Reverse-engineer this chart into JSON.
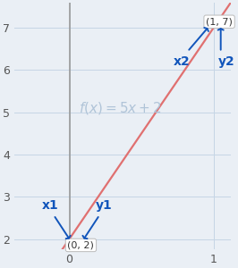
{
  "title": "$\\mathit{f}(x) = 5x + 2$",
  "xlim": [
    -0.38,
    1.12
  ],
  "ylim": [
    1.75,
    7.6
  ],
  "xticks": [
    0,
    1
  ],
  "yticks": [
    2,
    3,
    4,
    5,
    6,
    7
  ],
  "line_color": "#e07070",
  "slope": 5,
  "intercept": 2,
  "point1": [
    0,
    2
  ],
  "point2": [
    1,
    7
  ],
  "point1_label": "(0, 2)",
  "point2_label": "(1, 7)",
  "label_x1": "x1",
  "label_y1": "y1",
  "label_x2": "x2",
  "label_y2": "y2",
  "arrow_color": "#1155bb",
  "label_color": "#1155bb",
  "grid_color": "#c5d5e5",
  "bg_color": "#eaeff5",
  "axis_color": "#999999",
  "label_fontsize": 10,
  "func_fontsize": 11,
  "tick_fontsize": 9
}
